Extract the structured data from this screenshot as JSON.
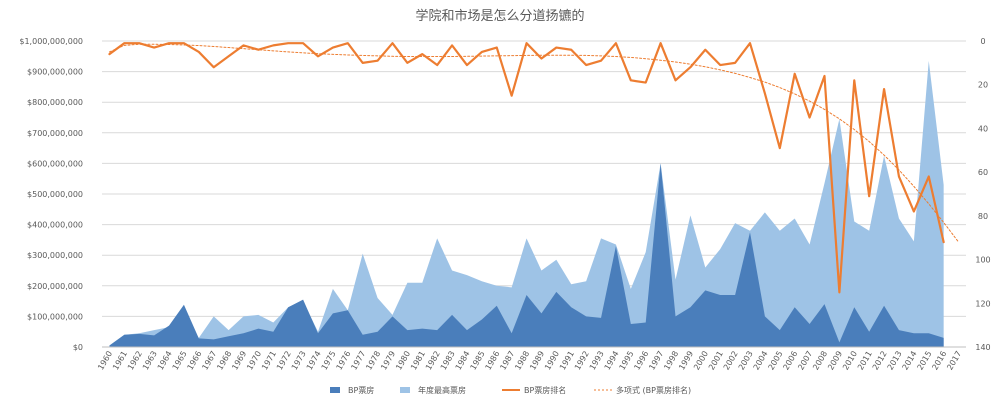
{
  "chart_data": {
    "type": "area",
    "title": "学院和市场是怎么分道扬镳的",
    "xlabel": "",
    "ylabel": "",
    "grid": true,
    "legend_position": "bottom",
    "categories": [
      "1960",
      "1961",
      "1962",
      "1963",
      "1964",
      "1965",
      "1966",
      "1967",
      "1968",
      "1969",
      "1970",
      "1971",
      "1972",
      "1973",
      "1974",
      "1975",
      "1976",
      "1977",
      "1978",
      "1979",
      "1980",
      "1981",
      "1982",
      "1983",
      "1984",
      "1985",
      "1986",
      "1987",
      "1988",
      "1989",
      "1990",
      "1991",
      "1992",
      "1993",
      "1994",
      "1995",
      "1996",
      "1997",
      "1998",
      "1999",
      "2000",
      "2001",
      "2002",
      "2003",
      "2004",
      "2005",
      "2006",
      "2007",
      "2008",
      "2009",
      "2010",
      "2011",
      "2012",
      "2013",
      "2014",
      "2015",
      "2016",
      "2017"
    ],
    "y_left": {
      "min": 0,
      "max": 1000000000,
      "step": 100000000,
      "tick_labels": [
        "$0",
        "$100,000,000",
        "$200,000,000",
        "$300,000,000",
        "$400,000,000",
        "$500,000,000",
        "$600,000,000",
        "$700,000,000",
        "$800,000,000",
        "$900,000,000",
        "$1,000,000,000"
      ]
    },
    "y_right": {
      "min": 0,
      "max": 140,
      "step": 20,
      "reversed": true,
      "tick_labels": [
        "0",
        "20",
        "40",
        "60",
        "80",
        "100",
        "120",
        "140"
      ]
    },
    "series": [
      {
        "name": "BP票房",
        "type": "area",
        "axis": "left",
        "color": "#4a7ebb",
        "values": [
          5000000,
          40000000,
          43000000,
          38000000,
          70000000,
          138000000,
          28000000,
          25000000,
          35000000,
          45000000,
          60000000,
          50000000,
          130000000,
          155000000,
          45000000,
          110000000,
          120000000,
          40000000,
          50000000,
          100000000,
          55000000,
          60000000,
          55000000,
          105000000,
          55000000,
          90000000,
          135000000,
          45000000,
          170000000,
          110000000,
          180000000,
          130000000,
          100000000,
          95000000,
          330000000,
          75000000,
          80000000,
          600000000,
          100000000,
          130000000,
          185000000,
          170000000,
          170000000,
          375000000,
          100000000,
          55000000,
          130000000,
          75000000,
          140000000,
          15000000,
          130000000,
          50000000,
          135000000,
          55000000,
          45000000,
          45000000,
          30000000,
          null
        ]
      },
      {
        "name": "年度最高票房",
        "type": "area",
        "axis": "left",
        "color": "#9ec3e6",
        "values": [
          5000000,
          40000000,
          45000000,
          55000000,
          65000000,
          100000000,
          30000000,
          100000000,
          55000000,
          100000000,
          105000000,
          80000000,
          130000000,
          150000000,
          50000000,
          190000000,
          120000000,
          305000000,
          160000000,
          105000000,
          210000000,
          210000000,
          355000000,
          250000000,
          235000000,
          215000000,
          200000000,
          195000000,
          355000000,
          250000000,
          285000000,
          205000000,
          215000000,
          355000000,
          335000000,
          190000000,
          310000000,
          600000000,
          220000000,
          430000000,
          260000000,
          320000000,
          405000000,
          380000000,
          440000000,
          380000000,
          420000000,
          335000000,
          535000000,
          745000000,
          410000000,
          380000000,
          625000000,
          420000000,
          345000000,
          935000000,
          530000000,
          null
        ]
      },
      {
        "name": "BP票房排名",
        "type": "line",
        "axis": "right",
        "color": "#ed7d31",
        "values": [
          6,
          1,
          1,
          3,
          1,
          1,
          5,
          12,
          7,
          2,
          4,
          2,
          1,
          1,
          7,
          3,
          1,
          10,
          9,
          1,
          10,
          6,
          11,
          2,
          11,
          5,
          3,
          25,
          1,
          8,
          3,
          4,
          11,
          9,
          1,
          18,
          19,
          1,
          18,
          12,
          4,
          11,
          10,
          1,
          24,
          49,
          15,
          35,
          16,
          115,
          18,
          71,
          22,
          62,
          78,
          62,
          92,
          null
        ]
      },
      {
        "name": "多项式 (BP票房排名)",
        "type": "trendline",
        "axis": "right",
        "color": "#ed7d31",
        "values": [
          5,
          2,
          1.5,
          1.5,
          1.6,
          1.8,
          2.1,
          2.5,
          3,
          3.5,
          4,
          4.5,
          5,
          5.4,
          5.8,
          6.1,
          6.4,
          6.6,
          6.8,
          7,
          7.1,
          7.1,
          7.1,
          7.1,
          7,
          6.9,
          6.8,
          6.7,
          6.6,
          6.5,
          6.5,
          6.5,
          6.6,
          6.8,
          7.1,
          7.5,
          8.1,
          8.8,
          9.6,
          10.6,
          11.8,
          13.2,
          14.8,
          16.7,
          18.8,
          21.3,
          24.2,
          27.5,
          31.3,
          35.6,
          40.5,
          46,
          52.2,
          59,
          66.5,
          74.5,
          83,
          92
        ]
      }
    ]
  }
}
